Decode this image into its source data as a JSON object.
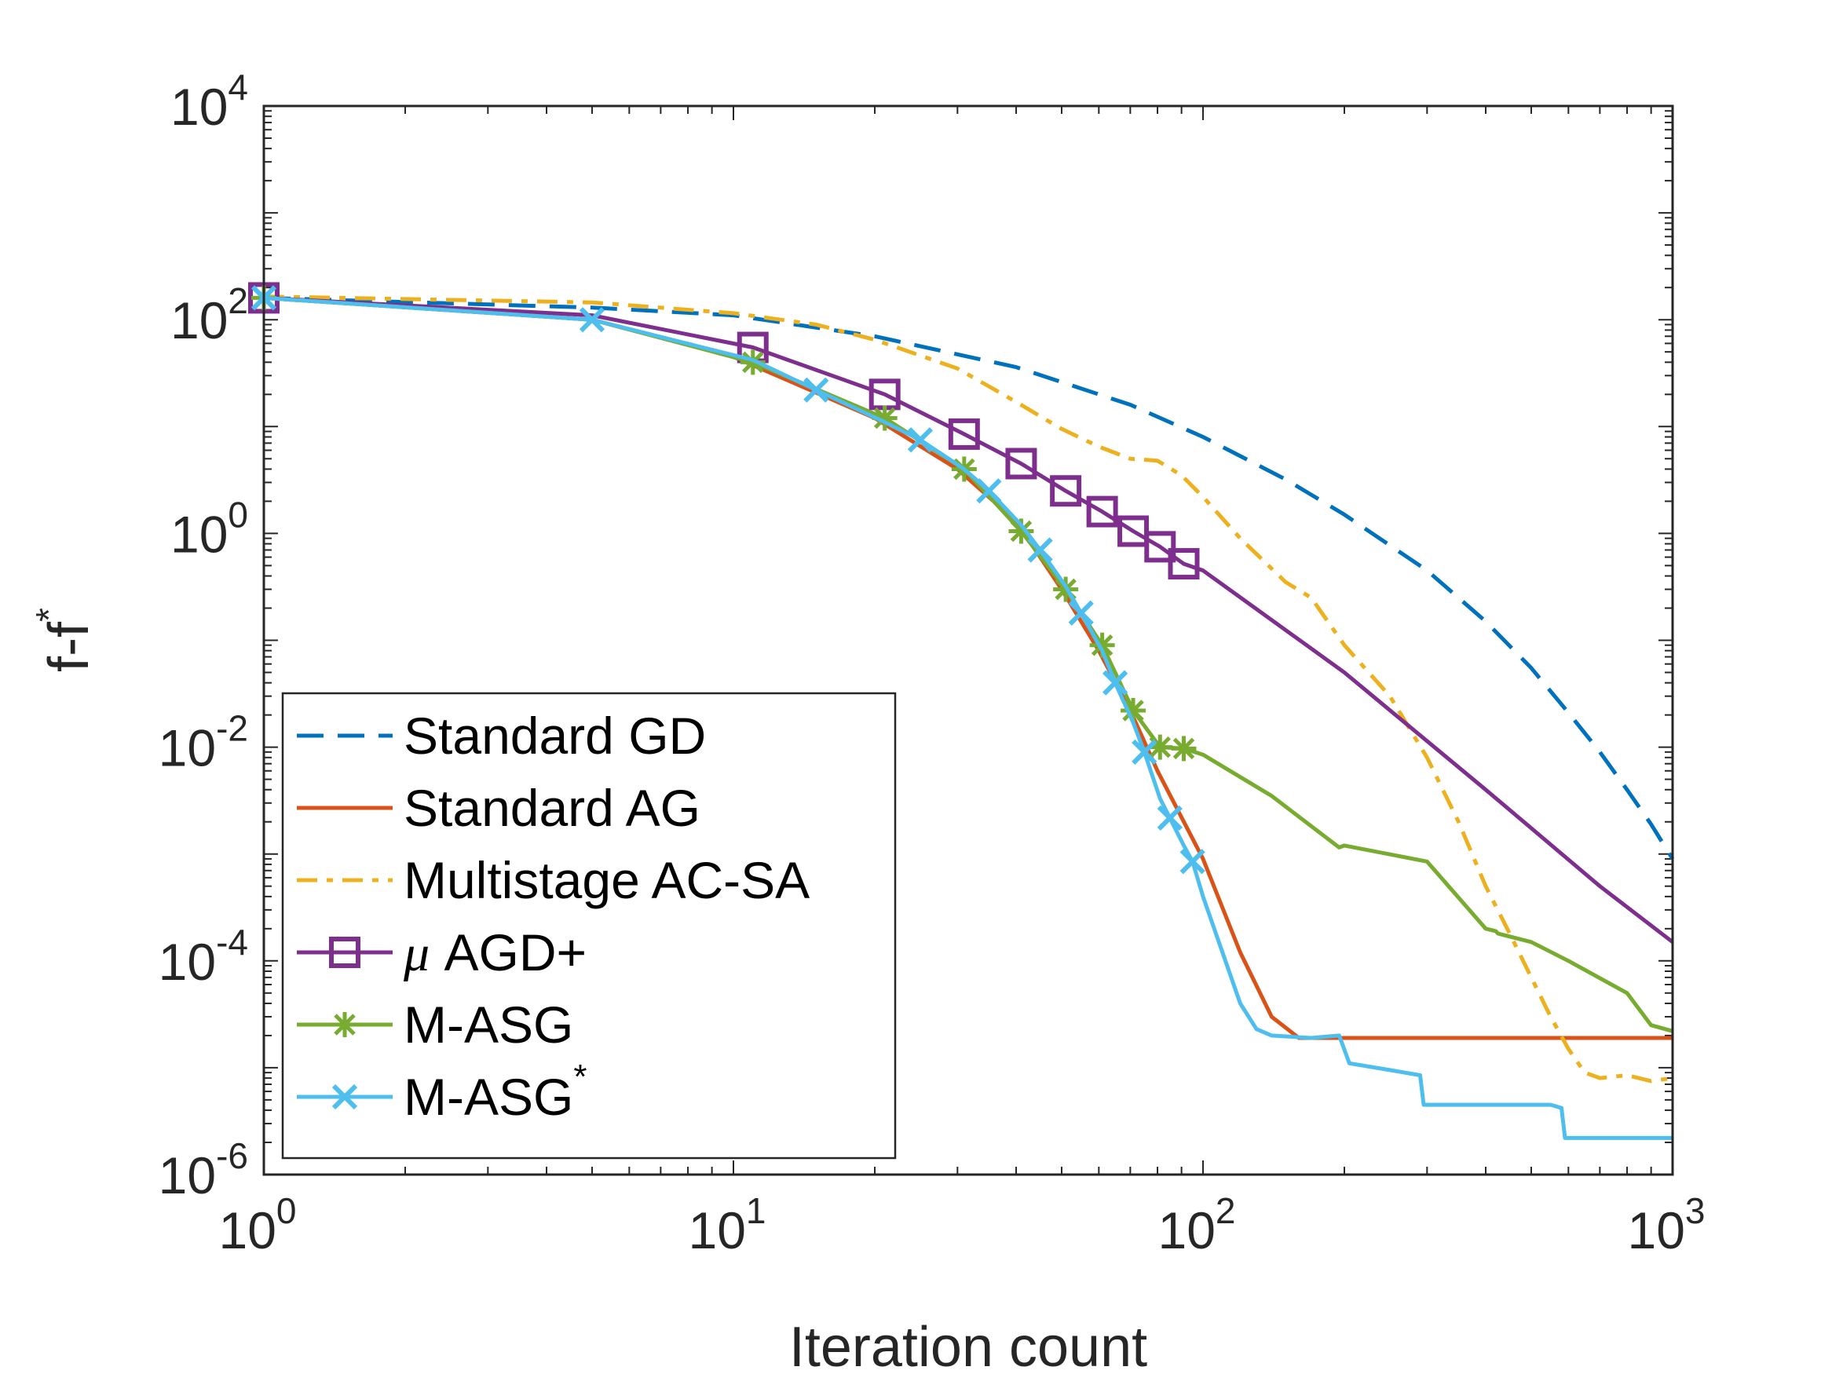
{
  "chart_data": {
    "type": "line",
    "xscale": "log",
    "yscale": "log",
    "xlim": [
      1,
      1000
    ],
    "ylim": [
      1e-06,
      10000
    ],
    "xlabel": "Iteration count",
    "ylabel": "f-f",
    "ylabel_superscript": "*",
    "grid": false,
    "legend_position": "bottom-left",
    "x_ticks": [
      {
        "value": 1,
        "base": "10",
        "exp": "0"
      },
      {
        "value": 10,
        "base": "10",
        "exp": "1"
      },
      {
        "value": 100,
        "base": "10",
        "exp": "2"
      },
      {
        "value": 1000,
        "base": "10",
        "exp": "3"
      }
    ],
    "y_ticks": [
      {
        "value": 10000,
        "base": "10",
        "exp": "4"
      },
      {
        "value": 100,
        "base": "10",
        "exp": "2"
      },
      {
        "value": 1,
        "base": "10",
        "exp": "0"
      },
      {
        "value": 0.01,
        "base": "10",
        "exp": "-2"
      },
      {
        "value": 0.0001,
        "base": "10",
        "exp": "-4"
      },
      {
        "value": 1e-06,
        "base": "10",
        "exp": "-6"
      }
    ],
    "series": [
      {
        "name": "Standard GD",
        "color": "#0072BD",
        "style": "dashed",
        "marker": "none",
        "x": [
          1,
          5,
          10,
          20,
          40,
          70,
          100,
          150,
          200,
          300,
          400,
          500,
          600,
          700,
          800,
          900,
          1000
        ],
        "y": [
          160,
          130,
          110,
          70,
          36,
          16,
          8,
          3.2,
          1.5,
          0.45,
          0.15,
          0.055,
          0.021,
          0.009,
          0.004,
          0.0019,
          0.0009
        ]
      },
      {
        "name": "Standard AG",
        "color": "#D95319",
        "style": "solid",
        "marker": "none",
        "x": [
          1,
          5,
          10,
          20,
          30,
          40,
          50,
          60,
          70,
          80,
          100,
          120,
          140,
          160,
          200,
          300,
          500,
          1000
        ],
        "y": [
          160,
          100,
          45,
          12,
          4,
          1.3,
          0.3,
          0.08,
          0.022,
          0.006,
          0.0009,
          0.00012,
          3e-05,
          1.9e-05,
          1.9e-05,
          1.9e-05,
          1.9e-05,
          1.9e-05
        ]
      },
      {
        "name": "Multistage AC-SA",
        "color": "#EDB120",
        "style": "dashdot",
        "marker": "none",
        "x": [
          1,
          5,
          10,
          15,
          20,
          30,
          40,
          50,
          60,
          70,
          80,
          90,
          100,
          120,
          150,
          170,
          200,
          250,
          300,
          350,
          400,
          450,
          500,
          550,
          600,
          650,
          700,
          800,
          900,
          1000
        ],
        "y": [
          165,
          145,
          115,
          90,
          65,
          35,
          17,
          9.5,
          6.5,
          5,
          4.8,
          3.5,
          2.2,
          0.9,
          0.35,
          0.25,
          0.09,
          0.03,
          0.008,
          0.002,
          0.0005,
          0.00018,
          7e-05,
          3e-05,
          1.5e-05,
          9e-06,
          8e-06,
          8.5e-06,
          7.5e-06,
          8e-06
        ]
      },
      {
        "name": "μ AGD+",
        "color": "#7E2F8E",
        "style": "solid",
        "marker": "square",
        "x": [
          1,
          5,
          11,
          21,
          31,
          41,
          51,
          61,
          71,
          81,
          91,
          100,
          200,
          400,
          700,
          1000
        ],
        "y": [
          160,
          110,
          55,
          20,
          8.5,
          4.5,
          2.5,
          1.6,
          1.05,
          0.75,
          0.52,
          0.45,
          0.05,
          0.004,
          0.0005,
          0.00015
        ],
        "marker_x": [
          1,
          11,
          21,
          31,
          41,
          51,
          61,
          71,
          81,
          91
        ]
      },
      {
        "name": "M-ASG",
        "color": "#77AC30",
        "style": "solid",
        "marker": "asterisk",
        "x": [
          1,
          5,
          11,
          21,
          31,
          41,
          51,
          61,
          71,
          81,
          91,
          100,
          140,
          195,
          200,
          300,
          400,
          420,
          425,
          500,
          600,
          800,
          900,
          1000
        ],
        "y": [
          160,
          100,
          40,
          12,
          4,
          1.05,
          0.3,
          0.09,
          0.022,
          0.01,
          0.0097,
          0.0085,
          0.0035,
          0.00115,
          0.0012,
          0.00085,
          0.0002,
          0.00019,
          0.00018,
          0.00015,
          0.0001,
          5e-05,
          2.5e-05,
          2.2e-05
        ],
        "marker_x": [
          1,
          11,
          21,
          31,
          41,
          51,
          61,
          71,
          81,
          91
        ]
      },
      {
        "name": "M-ASG",
        "legend_superscript": "*",
        "color": "#4DBEEE",
        "style": "solid",
        "marker": "x",
        "x": [
          1,
          5,
          11,
          15,
          21,
          25,
          31,
          35,
          41,
          45,
          51,
          55,
          61,
          65,
          71,
          75,
          81,
          91,
          95,
          100,
          110,
          120,
          130,
          140,
          170,
          195,
          205,
          250,
          290,
          295,
          400,
          550,
          580,
          590,
          1000
        ],
        "y": [
          160,
          100,
          42,
          22,
          11,
          7.5,
          4,
          2.5,
          1.2,
          0.7,
          0.32,
          0.18,
          0.08,
          0.04,
          0.017,
          0.009,
          0.0033,
          0.0012,
          0.00085,
          0.0004,
          0.00012,
          4e-05,
          2.3e-05,
          2e-05,
          1.9e-05,
          2e-05,
          1.1e-05,
          9.5e-06,
          8.5e-06,
          4.5e-06,
          4.5e-06,
          4.5e-06,
          4.2e-06,
          2.2e-06,
          2.2e-06
        ],
        "marker_x": [
          1,
          5,
          15,
          25,
          35,
          45,
          55,
          65,
          75,
          85,
          95
        ]
      }
    ]
  }
}
